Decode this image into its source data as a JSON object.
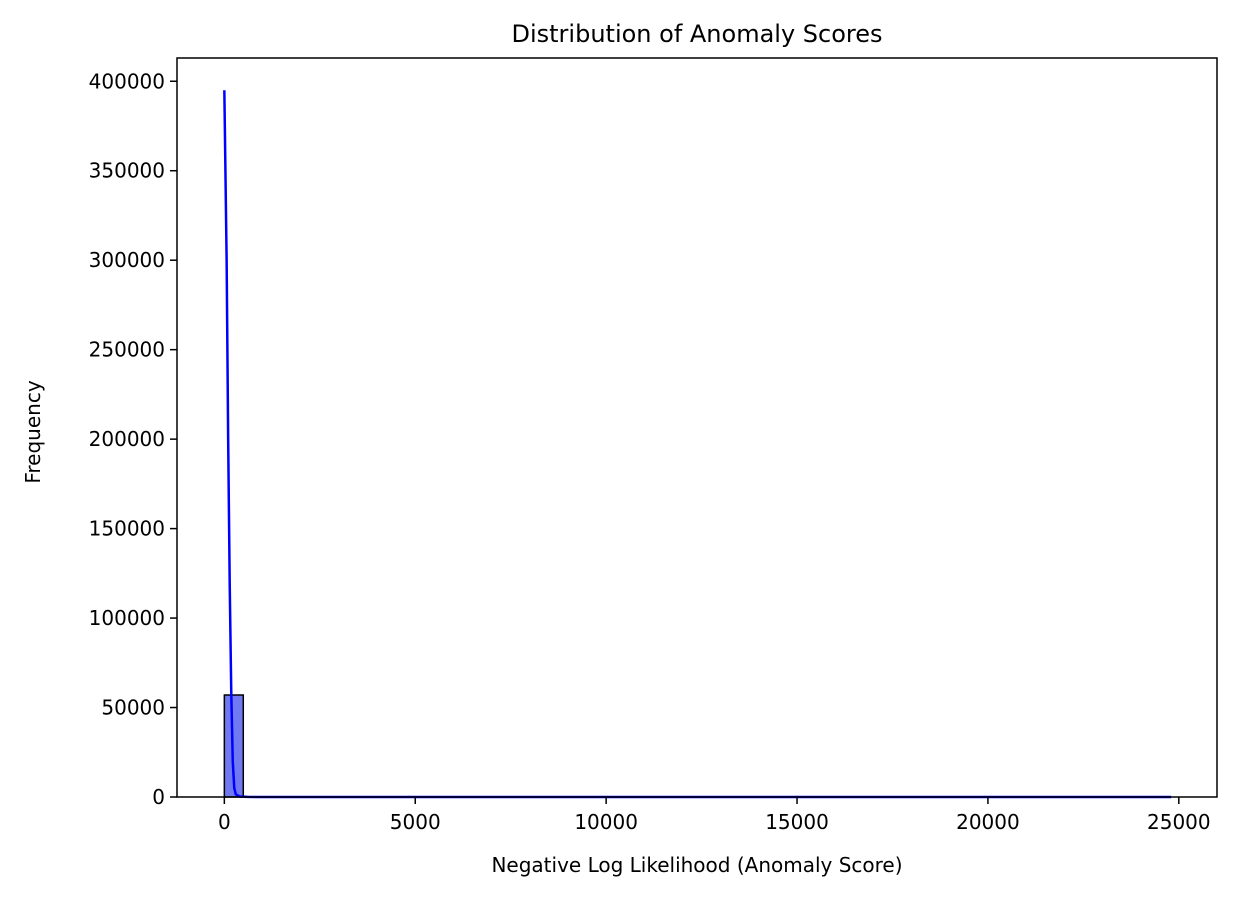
{
  "chart_data": {
    "type": "bar",
    "title": "Distribution of Anomaly Scores",
    "xlabel": "Negative Log Likelihood (Anomaly Score)",
    "ylabel": "Frequency",
    "xlim": [
      -1240,
      26000
    ],
    "ylim": [
      0,
      413000
    ],
    "xticks": [
      0,
      5000,
      10000,
      15000,
      20000,
      25000
    ],
    "yticks": [
      0,
      50000,
      100000,
      150000,
      200000,
      250000,
      300000,
      350000,
      400000
    ],
    "grid": false,
    "histogram": {
      "bin_edges": [
        0,
        496,
        992,
        1488,
        1984,
        2480,
        2976,
        3472,
        3968,
        4464,
        4960,
        5456,
        5952,
        6448,
        6944,
        7440,
        7936,
        8432,
        8928,
        9424,
        9920,
        10416,
        10912,
        11408,
        11904,
        12400,
        12896,
        13392,
        13888,
        14384,
        14880,
        15376,
        15872,
        16368,
        16864,
        17360,
        17856,
        18352,
        18848,
        19344,
        19840,
        20336,
        20832,
        21328,
        21824,
        22320,
        22816,
        23312,
        23808,
        24304,
        24800
      ],
      "counts": [
        57000,
        30,
        5,
        2,
        1,
        1,
        1,
        0,
        0,
        0,
        0,
        0,
        0,
        0,
        0,
        0,
        0,
        0,
        0,
        0,
        0,
        0,
        0,
        0,
        0,
        0,
        0,
        0,
        0,
        0,
        0,
        0,
        0,
        0,
        0,
        0,
        0,
        0,
        0,
        0,
        0,
        0,
        0,
        0,
        0,
        0,
        0,
        0,
        0,
        0
      ]
    },
    "kde": {
      "x": [
        0,
        60,
        100,
        140,
        180,
        220,
        260,
        300,
        400,
        600,
        1000,
        3000,
        10000,
        24800
      ],
      "y": [
        395000,
        300000,
        200000,
        120000,
        60000,
        20000,
        5000,
        1500,
        300,
        50,
        0,
        0,
        0,
        0
      ]
    },
    "colors": {
      "bar_fill": "#7179f0",
      "bar_edge": "#000000",
      "kde_line": "#0000ff"
    }
  }
}
